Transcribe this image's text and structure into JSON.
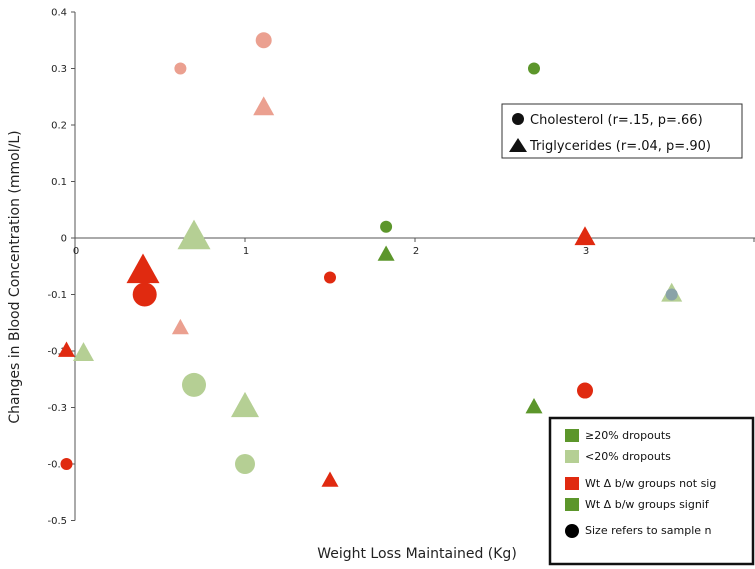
{
  "chart_data": {
    "type": "scatter",
    "title": "",
    "xlabel": "Weight Loss Maintained (Kg)",
    "ylabel": "Changes in Blood Concentration (mmol/L)",
    "xlim": [
      0,
      4
    ],
    "ylim": [
      -0.5,
      0.4
    ],
    "x_ticks": [
      "0",
      "1",
      "2",
      "3"
    ],
    "y_ticks": [
      "0.4",
      "0.3",
      "0.2",
      "0.1",
      "0",
      "-0.1",
      "-0.2",
      "-0.3",
      "-0.4",
      "-0.5"
    ],
    "grid": false,
    "colors": {
      "dark_green": "#5c962b",
      "light_green": "#b5cf94",
      "red": "#e02a10",
      "light_red": "#eba090",
      "gray_blue": "#8aa3a8"
    },
    "points": [
      {
        "x": 0.62,
        "y": 0.3,
        "shape": "circle",
        "color": "light_red",
        "size": 1
      },
      {
        "x": 1.11,
        "y": 0.35,
        "shape": "circle",
        "color": "light_red",
        "size": 2
      },
      {
        "x": 1.11,
        "y": 0.23,
        "shape": "triangle",
        "color": "light_red",
        "size": 3
      },
      {
        "x": 2.7,
        "y": 0.3,
        "shape": "circle",
        "color": "dark_green",
        "size": 1
      },
      {
        "x": 1.83,
        "y": 0.02,
        "shape": "circle",
        "color": "dark_green",
        "size": 1
      },
      {
        "x": 1.83,
        "y": -0.03,
        "shape": "triangle",
        "color": "dark_green",
        "size": 2
      },
      {
        "x": 0.7,
        "y": 0.0,
        "shape": "triangle",
        "color": "light_green",
        "size": 5
      },
      {
        "x": 3.0,
        "y": 0.0,
        "shape": "triangle",
        "color": "red",
        "size": 3
      },
      {
        "x": 0.4,
        "y": -0.06,
        "shape": "triangle",
        "color": "red",
        "size": 5
      },
      {
        "x": 0.41,
        "y": -0.1,
        "shape": "circle",
        "color": "red",
        "size": 4
      },
      {
        "x": 1.5,
        "y": -0.07,
        "shape": "circle",
        "color": "red",
        "size": 1
      },
      {
        "x": 3.51,
        "y": -0.1,
        "shape": "triangle",
        "color": "light_green",
        "size": 3
      },
      {
        "x": 3.51,
        "y": -0.1,
        "shape": "circle",
        "color": "gray_blue",
        "size": 1
      },
      {
        "x": 0.62,
        "y": -0.16,
        "shape": "triangle",
        "color": "light_red",
        "size": 2
      },
      {
        "x": -0.05,
        "y": -0.2,
        "shape": "triangle",
        "color": "red",
        "size": 2
      },
      {
        "x": 0.05,
        "y": -0.205,
        "shape": "triangle",
        "color": "light_green",
        "size": 3
      },
      {
        "x": 0.7,
        "y": -0.26,
        "shape": "circle",
        "color": "light_green",
        "size": 4
      },
      {
        "x": 1.0,
        "y": -0.3,
        "shape": "triangle",
        "color": "light_green",
        "size": 4
      },
      {
        "x": 2.7,
        "y": -0.3,
        "shape": "triangle",
        "color": "dark_green",
        "size": 2
      },
      {
        "x": 3.0,
        "y": -0.27,
        "shape": "circle",
        "color": "red",
        "size": 2
      },
      {
        "x": 1.0,
        "y": -0.4,
        "shape": "circle",
        "color": "light_green",
        "size": 3
      },
      {
        "x": -0.05,
        "y": -0.4,
        "shape": "circle",
        "color": "red",
        "size": 1
      },
      {
        "x": 1.5,
        "y": -0.43,
        "shape": "triangle",
        "color": "red",
        "size": 2
      }
    ],
    "legend_shapes": [
      {
        "shape": "circle",
        "label": "Cholesterol (r=.15, p=.66)"
      },
      {
        "shape": "triangle",
        "label": "Triglycerides (r=.04, p=.90)"
      }
    ],
    "legend_colors": [
      {
        "marker": "square",
        "color": "dark_green",
        "label": "≥20% dropouts"
      },
      {
        "marker": "square",
        "color": "light_green",
        "label": "<20% dropouts"
      },
      {
        "marker": "square",
        "color": "red",
        "label": "Wt Δ b/w groups not sig"
      },
      {
        "marker": "square",
        "color": "dark_green",
        "label": "Wt Δ b/w groups signif"
      },
      {
        "marker": "circle",
        "color": "black",
        "label": "Size refers to sample n"
      }
    ]
  }
}
